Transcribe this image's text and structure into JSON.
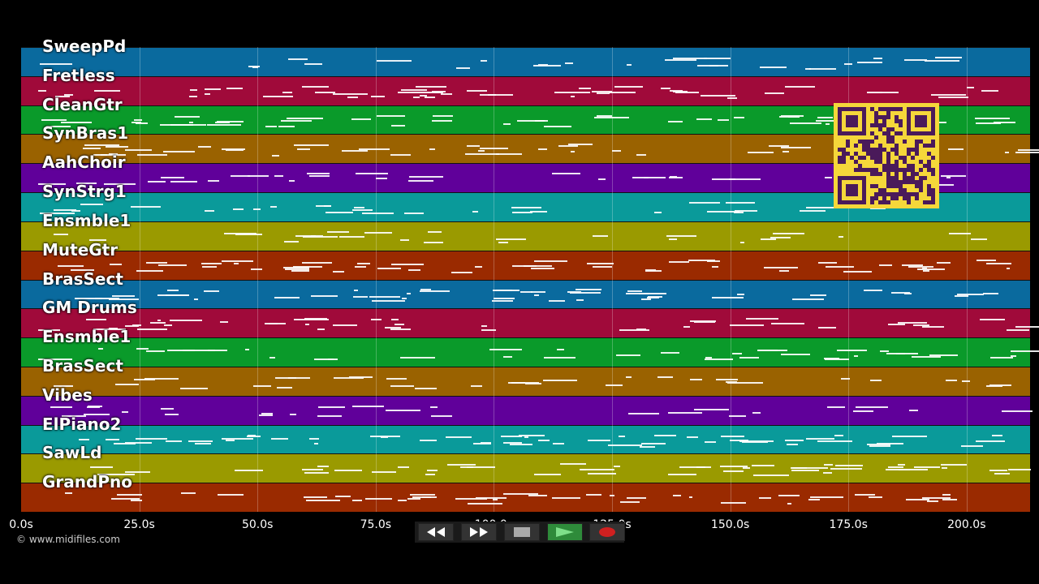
{
  "tracks": [
    {
      "name": "SweepPd",
      "color": "#0a6a9e"
    },
    {
      "name": "Fretless",
      "color": "#a00a3a"
    },
    {
      "name": "CleanGtr",
      "color": "#0a9a2a"
    },
    {
      "name": "SynBras1",
      "color": "#9a6200"
    },
    {
      "name": "AahChoir",
      "color": "#60009a"
    },
    {
      "name": "SynStrg1",
      "color": "#0a9a9a"
    },
    {
      "name": "Ensmble1",
      "color": "#9a9a00"
    },
    {
      "name": "MuteGtr",
      "color": "#9a2a00"
    },
    {
      "name": "BrasSect",
      "color": "#0a6a9e"
    },
    {
      "name": "GM Drums",
      "color": "#a00a3a"
    },
    {
      "name": "Ensmble1",
      "color": "#0a9a2a"
    },
    {
      "name": "BrasSect",
      "color": "#9a6200"
    },
    {
      "name": "Vibes",
      "color": "#60009a"
    },
    {
      "name": "ElPiano2",
      "color": "#0a9a9a"
    },
    {
      "name": "SawLd",
      "color": "#9a9a00"
    },
    {
      "name": "GrandPno",
      "color": "#9a2a00"
    }
  ],
  "time_axis": {
    "ticks": [
      "0.0s",
      "25.0s",
      "50.0s",
      "75.0s",
      "100.0s",
      "125.0s",
      "150.0s",
      "175.0s",
      "200.0s"
    ]
  },
  "copyright": "© www.midifiles.com",
  "transport": {
    "buttons": [
      "rewind",
      "fast-forward",
      "stop",
      "play",
      "record"
    ]
  },
  "colors": {
    "background": "#000000",
    "qr": "#f5d73a",
    "play": "#2e8b3a",
    "record": "#d02020"
  }
}
